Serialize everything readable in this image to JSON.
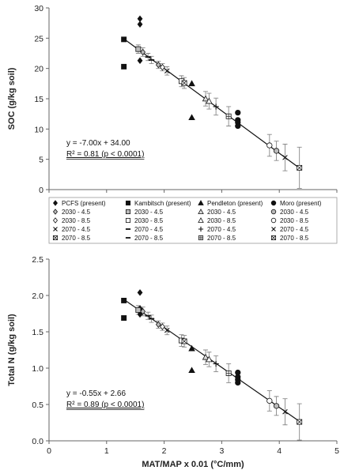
{
  "chart_data": [
    {
      "type": "scatter",
      "ylabel": "SOC (g/kg soil)",
      "xlim": [
        0,
        5
      ],
      "ylim": [
        0,
        30
      ],
      "yticks": [
        "0",
        "5",
        "10",
        "15",
        "20",
        "25",
        "30"
      ],
      "show_x_tick_labels": false,
      "grid": false,
      "regression": {
        "slope": -7.0,
        "intercept": 34.0,
        "x_range": [
          1.3,
          4.35
        ]
      },
      "equation": "y = -7.00x + 34.00",
      "r2_label": "R² = 0.81 (p < 0.0001)",
      "series": [
        {
          "name": "PCFS (present)",
          "marker": "diamond",
          "fill": "#111",
          "points": [
            [
              1.58,
              28.2
            ],
            [
              1.58,
              27.3
            ],
            [
              1.58,
              21.3
            ]
          ]
        },
        {
          "name": "Kambitsch (present)",
          "marker": "square",
          "fill": "#111",
          "points": [
            [
              1.3,
              24.8
            ],
            [
              1.3,
              20.3
            ]
          ]
        },
        {
          "name": "Pendleton (present)",
          "marker": "triangle",
          "fill": "#111",
          "points": [
            [
              2.48,
              17.5
            ],
            [
              2.48,
              11.9
            ]
          ]
        },
        {
          "name": "Moro (present)",
          "marker": "circle",
          "fill": "#111",
          "points": [
            [
              3.28,
              12.7
            ],
            [
              3.28,
              11.5
            ],
            [
              3.28,
              11.1
            ],
            [
              3.28,
              10.5
            ]
          ]
        },
        {
          "name": "2030 - 4.5",
          "marker": "diamond",
          "fill": "#bbb",
          "points": [
            [
              1.63,
              22.7,
              0.7
            ],
            [
              1.9,
              20.6,
              0.6
            ]
          ]
        },
        {
          "name": "2030 - 4.5",
          "marker": "square",
          "fill": "#bbb",
          "points": [
            [
              1.55,
              23.2,
              0.7
            ]
          ]
        },
        {
          "name": "2030 - 4.5",
          "marker": "triangle",
          "fill": "#ddd",
          "points": [
            [
              2.72,
              15.0,
              1.2
            ]
          ]
        },
        {
          "name": "2030 - 4.5",
          "marker": "circle",
          "fill": "#bbb",
          "points": [
            [
              3.95,
              6.4,
              1.6
            ]
          ]
        },
        {
          "name": "2030 - 8.5",
          "marker": "diamond",
          "fill": "#fff",
          "points": [
            [
              1.97,
              20.2,
              0.6
            ]
          ]
        },
        {
          "name": "2030 - 8.5",
          "marker": "square",
          "fill": "#fff",
          "points": [
            [
              2.3,
              17.9,
              0.9
            ]
          ]
        },
        {
          "name": "2030 - 8.5",
          "marker": "triangle",
          "fill": "#fff",
          "points": [
            [
              2.78,
              14.6,
              1.3
            ]
          ]
        },
        {
          "name": "2030 - 8.5",
          "marker": "circle",
          "fill": "#fff",
          "points": [
            [
              3.83,
              7.3,
              1.8
            ]
          ]
        },
        {
          "name": "2070 - 4.5",
          "marker": "x",
          "fill": "#111",
          "points": [
            [
              2.05,
              19.6,
              0.7
            ]
          ]
        },
        {
          "name": "2070 - 4.5",
          "marker": "dash",
          "fill": "#111",
          "points": [
            [
              1.72,
              21.9,
              0.6
            ]
          ]
        },
        {
          "name": "2070 - 4.5",
          "marker": "plus",
          "fill": "#111",
          "points": [
            [
              2.9,
              13.7,
              1.4
            ]
          ]
        },
        {
          "name": "2070 - 4.5",
          "marker": "x",
          "fill": "#111",
          "points": [
            [
              4.1,
              5.3,
              2.2
            ]
          ]
        },
        {
          "name": "2070 - 8.5",
          "marker": "xsquare",
          "fill": "#fff",
          "points": [
            [
              2.35,
              17.6,
              0.9
            ]
          ]
        },
        {
          "name": "2070 - 8.5",
          "marker": "dash",
          "fill": "#111",
          "points": [
            [
              1.78,
              21.4,
              0.6
            ]
          ]
        },
        {
          "name": "2070 - 8.5",
          "marker": "plussquare",
          "fill": "#fff",
          "points": [
            [
              3.12,
              12.1,
              1.6
            ]
          ]
        },
        {
          "name": "2070 - 8.5",
          "marker": "xsquare",
          "fill": "#fff",
          "points": [
            [
              4.35,
              3.6,
              3.4
            ]
          ]
        }
      ]
    },
    {
      "type": "scatter",
      "ylabel": "Total N (g/kg soil)",
      "xlabel": "MAT/MAP x 0.01 (°C/mm)",
      "xlim": [
        0,
        5
      ],
      "ylim": [
        0,
        2.5
      ],
      "xticks": [
        "0",
        "1",
        "2",
        "3",
        "4",
        "5"
      ],
      "yticks": [
        "0.0",
        "0.5",
        "1.0",
        "1.5",
        "2.0",
        "2.5"
      ],
      "show_x_tick_labels": true,
      "grid": false,
      "regression": {
        "slope": -0.55,
        "intercept": 2.66,
        "x_range": [
          1.3,
          4.35
        ]
      },
      "equation": "y = -0.55x + 2.66",
      "r2_label": "R² = 0.89 (p < 0.0001)",
      "series": [
        {
          "name": "PCFS (present)",
          "marker": "diamond",
          "fill": "#111",
          "points": [
            [
              1.58,
              2.04
            ],
            [
              1.58,
              1.82
            ],
            [
              1.58,
              1.74
            ]
          ]
        },
        {
          "name": "Kambitsch (present)",
          "marker": "square",
          "fill": "#111",
          "points": [
            [
              1.3,
              1.93
            ],
            [
              1.3,
              1.69
            ]
          ]
        },
        {
          "name": "Pendleton (present)",
          "marker": "triangle",
          "fill": "#111",
          "points": [
            [
              2.48,
              1.27
            ],
            [
              2.48,
              0.97
            ]
          ]
        },
        {
          "name": "Moro (present)",
          "marker": "circle",
          "fill": "#111",
          "points": [
            [
              3.28,
              0.94
            ],
            [
              3.28,
              0.88
            ],
            [
              3.28,
              0.84
            ],
            [
              3.28,
              0.8
            ]
          ]
        },
        {
          "name": "2030 - 4.5",
          "marker": "diamond",
          "fill": "#bbb",
          "points": [
            [
              1.63,
              1.78,
              0.06
            ],
            [
              1.9,
              1.6,
              0.05
            ]
          ]
        },
        {
          "name": "2030 - 4.5",
          "marker": "square",
          "fill": "#bbb",
          "points": [
            [
              1.55,
              1.8,
              0.06
            ]
          ]
        },
        {
          "name": "2030 - 4.5",
          "marker": "triangle",
          "fill": "#ddd",
          "points": [
            [
              2.72,
              1.15,
              0.1
            ]
          ]
        },
        {
          "name": "2030 - 4.5",
          "marker": "circle",
          "fill": "#bbb",
          "points": [
            [
              3.95,
              0.48,
              0.13
            ]
          ]
        },
        {
          "name": "2030 - 8.5",
          "marker": "diamond",
          "fill": "#fff",
          "points": [
            [
              1.97,
              1.57,
              0.05
            ]
          ]
        },
        {
          "name": "2030 - 8.5",
          "marker": "square",
          "fill": "#fff",
          "points": [
            [
              2.3,
              1.38,
              0.08
            ]
          ]
        },
        {
          "name": "2030 - 8.5",
          "marker": "triangle",
          "fill": "#fff",
          "points": [
            [
              2.78,
              1.12,
              0.1
            ]
          ]
        },
        {
          "name": "2030 - 8.5",
          "marker": "circle",
          "fill": "#fff",
          "points": [
            [
              3.83,
              0.55,
              0.14
            ]
          ]
        },
        {
          "name": "2070 - 4.5",
          "marker": "x",
          "fill": "#111",
          "points": [
            [
              2.05,
              1.52,
              0.06
            ]
          ]
        },
        {
          "name": "2070 - 4.5",
          "marker": "dash",
          "fill": "#111",
          "points": [
            [
              1.72,
              1.72,
              0.05
            ]
          ]
        },
        {
          "name": "2070 - 4.5",
          "marker": "plus",
          "fill": "#111",
          "points": [
            [
              2.9,
              1.06,
              0.11
            ]
          ]
        },
        {
          "name": "2070 - 4.5",
          "marker": "x",
          "fill": "#111",
          "points": [
            [
              4.1,
              0.4,
              0.18
            ]
          ]
        },
        {
          "name": "2070 - 8.5",
          "marker": "xsquare",
          "fill": "#fff",
          "points": [
            [
              2.35,
              1.37,
              0.08
            ]
          ]
        },
        {
          "name": "2070 - 8.5",
          "marker": "dash",
          "fill": "#111",
          "points": [
            [
              1.78,
              1.68,
              0.05
            ]
          ]
        },
        {
          "name": "2070 - 8.5",
          "marker": "plussquare",
          "fill": "#fff",
          "points": [
            [
              3.12,
              0.93,
              0.13
            ]
          ]
        },
        {
          "name": "2070 - 8.5",
          "marker": "xsquare",
          "fill": "#fff",
          "points": [
            [
              4.35,
              0.26,
              0.25
            ]
          ]
        }
      ]
    }
  ],
  "legend": {
    "placement": "between panels",
    "items": [
      {
        "marker": "diamond",
        "fill": "#111",
        "label": "PCFS (present)"
      },
      {
        "marker": "square",
        "fill": "#111",
        "label": "Kambitsch (present)"
      },
      {
        "marker": "triangle",
        "fill": "#111",
        "label": "Pendleton (present)"
      },
      {
        "marker": "circle",
        "fill": "#111",
        "label": "Moro (present)"
      },
      {
        "marker": "diamond",
        "fill": "#bbb",
        "label": "2030 - 4.5"
      },
      {
        "marker": "square",
        "fill": "#bbb",
        "label": "2030 - 4.5"
      },
      {
        "marker": "triangle",
        "fill": "#ddd",
        "label": "2030 - 4.5"
      },
      {
        "marker": "circle",
        "fill": "#bbb",
        "label": "2030 - 4.5"
      },
      {
        "marker": "diamond",
        "fill": "#fff",
        "label": "2030 - 8.5"
      },
      {
        "marker": "square",
        "fill": "#fff",
        "label": "2030 - 8.5"
      },
      {
        "marker": "triangle",
        "fill": "#fff",
        "label": "2030 - 8.5"
      },
      {
        "marker": "circle",
        "fill": "#fff",
        "label": "2030 - 8.5"
      },
      {
        "marker": "x",
        "fill": "#111",
        "label": "2070 - 4.5"
      },
      {
        "marker": "dash",
        "fill": "#111",
        "label": "2070 - 4.5"
      },
      {
        "marker": "plus",
        "fill": "#111",
        "label": "2070 - 4.5"
      },
      {
        "marker": "x",
        "fill": "#111",
        "label": "2070 - 4.5"
      },
      {
        "marker": "xsquare",
        "fill": "#fff",
        "label": "2070 - 8.5"
      },
      {
        "marker": "dash",
        "fill": "#111",
        "label": "2070 - 8.5"
      },
      {
        "marker": "plussquare",
        "fill": "#fff",
        "label": "2070 - 8.5"
      },
      {
        "marker": "xsquare",
        "fill": "#fff",
        "label": "2070 - 8.5"
      }
    ]
  }
}
